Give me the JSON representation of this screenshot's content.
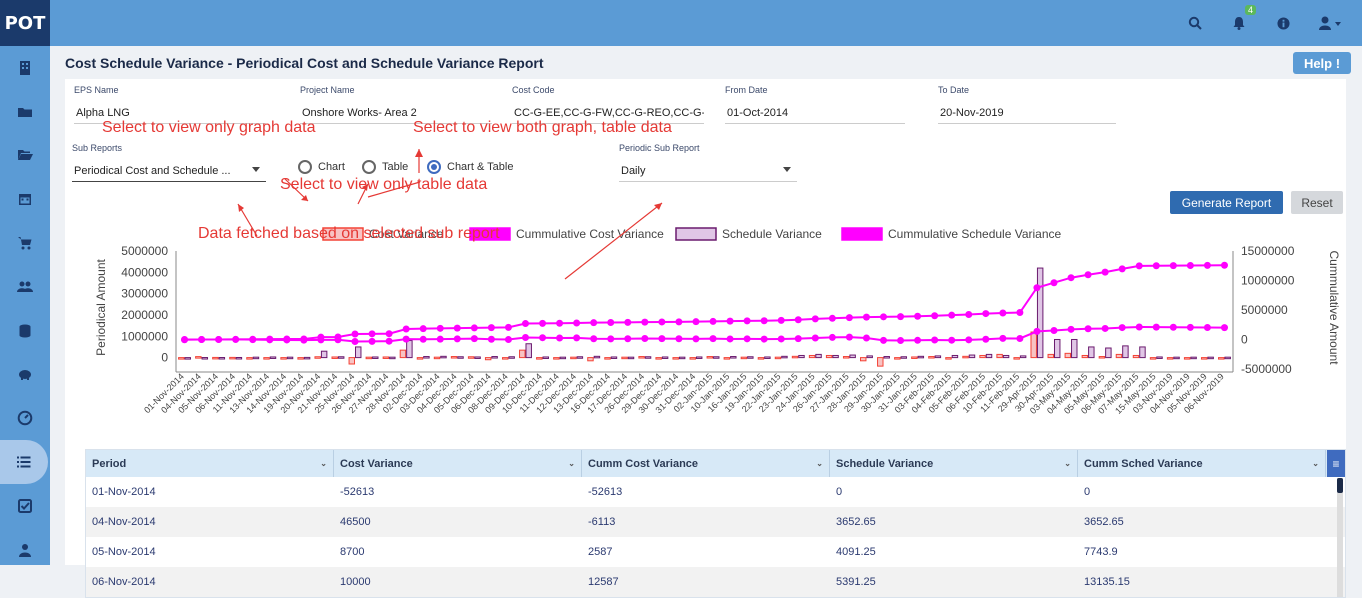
{
  "app": {
    "logo": "POT",
    "notif_count": "4"
  },
  "sidebar": {
    "icons": [
      "building-icon",
      "folder-icon",
      "folder-open-icon",
      "calendar-icon",
      "cart-icon",
      "users-icon",
      "database-icon",
      "piggy-bank-icon",
      "dashboard-icon",
      "list-icon",
      "check-square-icon",
      "user-icon"
    ],
    "active_index": 9
  },
  "page": {
    "title": "Cost Schedule Variance - Periodical Cost and Schedule Variance Report",
    "help_label": "Help !"
  },
  "filters": {
    "eps_label": "EPS Name",
    "eps_value": "Alpha LNG",
    "project_label": "Project Name",
    "project_value": "Onshore  Works- Area 2",
    "cost_code_label": "Cost Code",
    "cost_code_value": "CC-G-EE,CC-G-FW,CC-G-REO,CC-G-C,",
    "from_label": "From Date",
    "from_value": "01-Oct-2014",
    "to_label": "To Date",
    "to_value": "20-Nov-2019",
    "sub_reports_label": "Sub Reports",
    "sub_reports_value": "Periodical Cost and Schedule ...",
    "periodic_label": "Periodic Sub Report",
    "periodic_value": "Daily"
  },
  "view_mode": {
    "options": [
      "Chart",
      "Table",
      "Chart & Table"
    ],
    "selected": "Chart & Table"
  },
  "buttons": {
    "generate": "Generate Report",
    "reset": "Reset"
  },
  "annotations": {
    "a1": "Select to view only graph data",
    "a2": "Select to view both graph, table data",
    "a3": "Select to view only table data",
    "a4": "Data fetched based on selected sub report"
  },
  "colors": {
    "cost": "#f44336",
    "cost_fill": "#f8c3c3",
    "schedule": "#6a1b6e",
    "schedule_fill": "#e0c6e6",
    "cumm": "#ff00ff"
  },
  "chart_data": {
    "type": "bar",
    "legend": [
      "Cost Variance",
      "Cummulative Cost Variance",
      "Schedule Variance",
      "Cummulative Schedule Variance"
    ],
    "ylabel": "Periodical Amount",
    "y2label": "Cummulative Amount",
    "ylim": [
      -300000,
      5000000
    ],
    "y_ticks": [
      "5000000",
      "4000000",
      "3000000",
      "2000000",
      "1000000",
      "0"
    ],
    "y2lim": [
      -5000000,
      15000000
    ],
    "y2_ticks": [
      "15000000",
      "10000000",
      "5000000",
      "0",
      "-5000000"
    ],
    "categories": [
      "01-Nov-2014",
      "04-Nov-2014",
      "05-Nov-2014",
      "06-Nov-2014",
      "11-Nov-2014",
      "13-Nov-2014",
      "14-Nov-2014",
      "19-Nov-2014",
      "20-Nov-2014",
      "21-Nov-2014",
      "25-Nov-2014",
      "26-Nov-2014",
      "27-Nov-2014",
      "28-Nov-2014",
      "02-Dec-2014",
      "03-Dec-2014",
      "04-Dec-2014",
      "05-Dec-2014",
      "06-Dec-2014",
      "08-Dec-2014",
      "09-Dec-2014",
      "10-Dec-2014",
      "11-Dec-2014",
      "12-Dec-2014",
      "13-Dec-2014",
      "16-Dec-2014",
      "17-Dec-2014",
      "26-Dec-2014",
      "29-Dec-2014",
      "30-Dec-2014",
      "31-Dec-2014",
      "02-Jan-2015",
      "10-Jan-2015",
      "16-Jan-2015",
      "19-Jan-2015",
      "22-Jan-2015",
      "23-Jan-2015",
      "24-Jan-2015",
      "26-Jan-2015",
      "27-Jan-2015",
      "28-Jan-2015",
      "29-Jan-2015",
      "30-Jan-2015",
      "31-Jan-2015",
      "03-Feb-2015",
      "04-Feb-2015",
      "05-Feb-2015",
      "06-Feb-2015",
      "10-Feb-2015",
      "11-Feb-2015",
      "29-Apr-2015",
      "30-Apr-2015",
      "03-May-2015",
      "04-May-2015",
      "05-May-2015",
      "06-May-2015",
      "07-May-2015",
      "15-May-2015",
      "03-Nov-2019",
      "04-Nov-2019",
      "05-Nov-2019",
      "06-Nov-2019"
    ],
    "series": [
      {
        "name": "Cost Variance",
        "values": [
          -52613,
          46500,
          8700,
          10000,
          -30000,
          -40000,
          -20000,
          -30000,
          40000,
          30000,
          -300000,
          20000,
          30000,
          350000,
          -30000,
          20000,
          50000,
          40000,
          -100000,
          -50000,
          350000,
          -40000,
          -50000,
          20000,
          -150000,
          -20000,
          20000,
          50000,
          -20000,
          -30000,
          -20000,
          50000,
          -60000,
          20000,
          -40000,
          20000,
          60000,
          100000,
          100000,
          50000,
          -150000,
          -400000,
          -20000,
          30000,
          50000,
          -30000,
          60000,
          100000,
          150000,
          -20000,
          1200000,
          150000,
          200000,
          100000,
          50000,
          150000,
          100000,
          -20000,
          -30000,
          -20000,
          -20000,
          -20000
        ]
      },
      {
        "name": "Cummulative Cost Variance",
        "values": [
          -52613,
          -6113,
          2587,
          12587,
          -17000,
          -57000,
          -77000,
          -107000,
          -67000,
          -37000,
          -337000,
          -317000,
          -287000,
          63000,
          33000,
          53000,
          103000,
          143000,
          43000,
          -7000,
          343000,
          303000,
          253000,
          273000,
          123000,
          103000,
          123000,
          173000,
          153000,
          123000,
          103000,
          153000,
          93000,
          113000,
          73000,
          93000,
          153000,
          253000,
          353000,
          403000,
          253000,
          -147000,
          -167000,
          -137000,
          -87000,
          -117000,
          -57000,
          43000,
          193000,
          173000,
          1373000,
          1523000,
          1723000,
          1823000,
          1873000,
          2023000,
          2123000,
          2103000,
          2073000,
          2053000,
          2033000,
          2013000
        ]
      },
      {
        "name": "Schedule Variance",
        "values": [
          0,
          3652.65,
          4091.25,
          5391.25,
          20000,
          30000,
          20000,
          10000,
          300000,
          40000,
          500000,
          30000,
          20000,
          800000,
          50000,
          60000,
          40000,
          30000,
          50000,
          40000,
          650000,
          30000,
          20000,
          40000,
          60000,
          30000,
          20000,
          40000,
          30000,
          20000,
          30000,
          40000,
          50000,
          40000,
          30000,
          60000,
          100000,
          150000,
          100000,
          120000,
          80000,
          50000,
          40000,
          60000,
          80000,
          100000,
          120000,
          150000,
          100000,
          80000,
          4200000,
          850000,
          850000,
          500000,
          450000,
          550000,
          500000,
          30000,
          20000,
          20000,
          20000,
          20000
        ]
      },
      {
        "name": "Cummulative Schedule Variance",
        "values": [
          0,
          3652.65,
          7743.9,
          13135.15,
          33135,
          63135,
          83135,
          93135,
          393135,
          433135,
          933135,
          963135,
          983135,
          1783135,
          1833135,
          1893135,
          1933135,
          1963135,
          2013135,
          2053135,
          2703135,
          2733135,
          2753135,
          2793135,
          2853135,
          2883135,
          2903135,
          2943135,
          2973135,
          2993135,
          3023135,
          3063135,
          3113135,
          3153135,
          3183135,
          3243135,
          3343135,
          3493135,
          3593135,
          3713135,
          3793135,
          3843135,
          3883135,
          3943135,
          4023135,
          4123135,
          4243135,
          4393135,
          4493135,
          4573135,
          8773135,
          9623135,
          10473135,
          10973135,
          11423135,
          11973135,
          12473135,
          12503135,
          12523135,
          12543135,
          12563135,
          12583135
        ]
      }
    ]
  },
  "table": {
    "columns": [
      "Period",
      "Cost Variance",
      "Cumm Cost Variance",
      "Schedule Variance",
      "Cumm Sched Variance"
    ],
    "rows": [
      [
        "01-Nov-2014",
        "-52613",
        "-52613",
        "0",
        "0"
      ],
      [
        "04-Nov-2014",
        "46500",
        "-6113",
        "3652.65",
        "3652.65"
      ],
      [
        "05-Nov-2014",
        "8700",
        "2587",
        "4091.25",
        "7743.9"
      ],
      [
        "06-Nov-2014",
        "10000",
        "12587",
        "5391.25",
        "13135.15"
      ]
    ]
  }
}
